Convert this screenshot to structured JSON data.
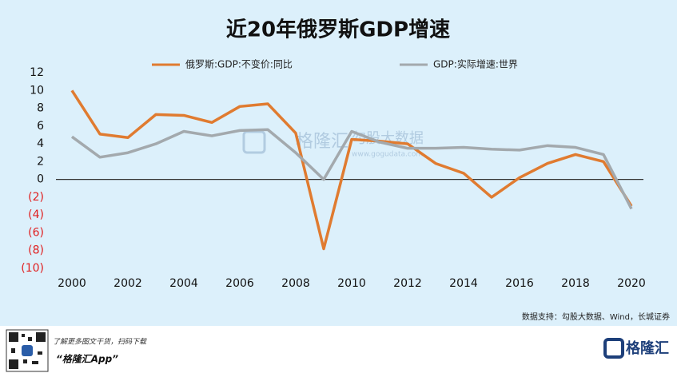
{
  "chart_data": {
    "type": "line",
    "title": "近20年俄罗斯GDP增速",
    "x": [
      2000,
      2001,
      2002,
      2003,
      2004,
      2005,
      2006,
      2007,
      2008,
      2009,
      2010,
      2011,
      2012,
      2013,
      2014,
      2015,
      2016,
      2017,
      2018,
      2019,
      2020
    ],
    "series": [
      {
        "name": "俄罗斯:GDP:不变价:同比",
        "color": "#e07b30",
        "values": [
          10.0,
          5.1,
          4.7,
          7.3,
          7.2,
          6.4,
          8.2,
          8.5,
          5.2,
          -7.8,
          4.5,
          4.3,
          4.0,
          1.8,
          0.7,
          -2.0,
          0.2,
          1.8,
          2.8,
          2.0,
          -3.0
        ]
      },
      {
        "name": "GDP:实际增速:世界",
        "color": "#a3a9ad",
        "values": [
          4.8,
          2.5,
          3.0,
          4.0,
          5.4,
          4.9,
          5.5,
          5.6,
          3.0,
          0.0,
          5.4,
          4.2,
          3.5,
          3.5,
          3.6,
          3.4,
          3.3,
          3.8,
          3.6,
          2.8,
          -3.3
        ]
      }
    ],
    "xlim": [
      2000,
      2020
    ],
    "xticks": [
      2000,
      2002,
      2004,
      2006,
      2008,
      2010,
      2012,
      2014,
      2016,
      2018,
      2020
    ],
    "ylim": [
      -10,
      12
    ],
    "yticks": [
      12,
      10,
      8,
      6,
      4,
      2,
      0,
      {
        "value": -2,
        "label": "(2)"
      },
      {
        "value": -4,
        "label": "(4)"
      },
      {
        "value": -6,
        "label": "(6)"
      },
      {
        "value": -8,
        "label": "(8)"
      },
      {
        "value": -10,
        "label": "(10)"
      }
    ],
    "negative_tick_color": "#e02020",
    "grid": false,
    "source": "数据支持：勾股大数据、Wind，长城证券",
    "watermark": {
      "brand": "格隆汇",
      "name": "勾股大数据",
      "url": "www.gogudata.com"
    }
  },
  "footer": {
    "prompt": "了解更多图文干货，扫码下载",
    "app": "“格隆汇App”",
    "logo": "格隆汇"
  }
}
